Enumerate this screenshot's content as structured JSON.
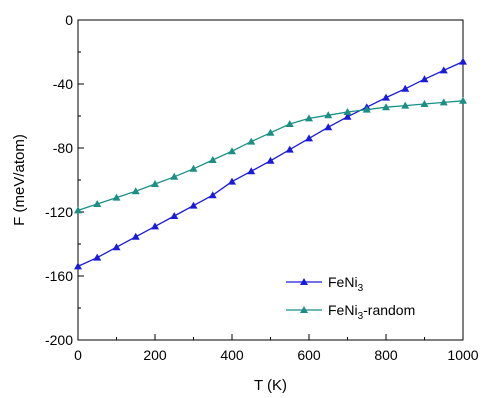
{
  "chart_data": {
    "type": "line",
    "title": "",
    "xlabel": "T (K)",
    "ylabel": "F (meV/atom)",
    "xlim": [
      0,
      1000
    ],
    "ylim": [
      -200,
      0
    ],
    "x_ticks": [
      0,
      200,
      400,
      600,
      800,
      1000
    ],
    "y_ticks": [
      0,
      -40,
      -80,
      -120,
      -160,
      -200
    ],
    "grid": false,
    "legend_position": "bottom-right",
    "series": [
      {
        "name": "FeNi3",
        "legend_main": "FeNi",
        "legend_sub": "3",
        "legend_suffix": "",
        "color": "#1a1adb",
        "marker": "triangle",
        "x": [
          0,
          50,
          100,
          150,
          200,
          250,
          300,
          350,
          400,
          450,
          500,
          550,
          600,
          650,
          700,
          750,
          800,
          850,
          900,
          950,
          1000
        ],
        "y": [
          -154,
          -148.5,
          -142,
          -135.5,
          -129,
          -122.5,
          -116,
          -109.5,
          -101,
          -94.5,
          -88,
          -81,
          -74,
          -67,
          -60.5,
          -54.5,
          -48.5,
          -43,
          -37,
          -31.5,
          -26
        ]
      },
      {
        "name": "FeNi3-random",
        "legend_main": "FeNi",
        "legend_sub": "3",
        "legend_suffix": "-random",
        "color": "#1b8f84",
        "marker": "triangle",
        "x": [
          0,
          50,
          100,
          150,
          200,
          250,
          300,
          350,
          400,
          450,
          500,
          550,
          600,
          650,
          700,
          750,
          800,
          850,
          900,
          950,
          1000
        ],
        "y": [
          -119,
          -115,
          -111,
          -107,
          -102.5,
          -98,
          -93,
          -87.5,
          -82,
          -76,
          -70.5,
          -65,
          -61.5,
          -59.5,
          -57.5,
          -56,
          -54.5,
          -53.5,
          -52.5,
          -51.5,
          -50.5
        ]
      }
    ]
  }
}
